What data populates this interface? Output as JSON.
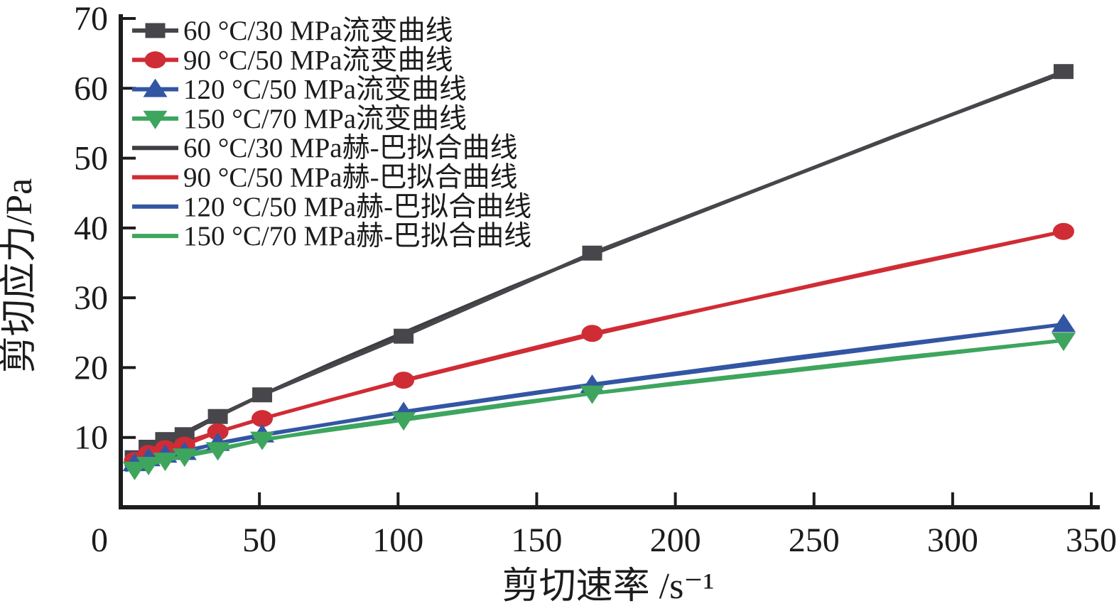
{
  "figure": {
    "background": "#ffffff",
    "axis_color": "#1c1c1c"
  },
  "chart_data": {
    "type": "line",
    "title": "",
    "xlabel": "剪切速率 /s⁻¹",
    "ylabel": "剪切应力/Pa",
    "xlim": [
      0,
      350
    ],
    "ylim": [
      0,
      70
    ],
    "x_ticks": [
      0,
      50,
      100,
      150,
      200,
      250,
      300,
      350
    ],
    "y_ticks": [
      10,
      20,
      30,
      40,
      50,
      60,
      70
    ],
    "grid": false,
    "legend_position": "top-left",
    "legend_frame": false,
    "series": [
      {
        "name": "60 °C/30 MPa流变曲线",
        "role": "data",
        "marker": "square",
        "color": "#46464b",
        "x": [
          5,
          10,
          16,
          23,
          35,
          51,
          102,
          170,
          340
        ],
        "y": [
          7.1,
          8.6,
          9.7,
          10.4,
          13.0,
          16.1,
          24.5,
          36.4,
          62.4
        ]
      },
      {
        "name": "90 °C/50 MPa流变曲线",
        "role": "data",
        "marker": "circle",
        "color": "#d02c35",
        "x": [
          5,
          10,
          16,
          23,
          35,
          51,
          102,
          170,
          340
        ],
        "y": [
          6.7,
          7.7,
          8.4,
          8.9,
          10.8,
          12.7,
          18.2,
          24.9,
          39.5
        ]
      },
      {
        "name": "120 °C/50 MPa流变曲线",
        "role": "data",
        "marker": "triangle-up",
        "color": "#3356a3",
        "x": [
          5,
          10,
          16,
          23,
          35,
          51,
          102,
          170,
          340
        ],
        "y": [
          6.3,
          7.0,
          7.5,
          7.9,
          9.2,
          10.4,
          13.6,
          17.5,
          26.2
        ]
      },
      {
        "name": "150 °C/70 MPa流变曲线",
        "role": "data",
        "marker": "triangle-down",
        "color": "#3ea55e",
        "x": [
          5,
          10,
          16,
          23,
          35,
          51,
          102,
          170,
          340
        ],
        "y": [
          5.4,
          6.1,
          6.7,
          7.3,
          8.2,
          9.7,
          12.5,
          16.3,
          23.9
        ]
      },
      {
        "name": "60 °C/30 MPa赫-巴拟合曲线",
        "role": "fit",
        "marker": null,
        "color": "#3e3e43",
        "x": [
          2,
          5,
          10,
          16,
          23,
          35,
          51,
          75,
          102,
          140,
          170,
          200,
          238,
          280,
          340
        ],
        "y": [
          6.1,
          6.9,
          8.0,
          9.3,
          10.7,
          13.1,
          16.1,
          20.4,
          25.0,
          31.4,
          36.2,
          40.9,
          46.8,
          53.3,
          62.2
        ]
      },
      {
        "name": "90 °C/50 MPa赫-巴拟合曲线",
        "role": "fit",
        "marker": null,
        "color": "#d02c35",
        "x": [
          2,
          5,
          10,
          16,
          23,
          35,
          51,
          75,
          102,
          140,
          170,
          200,
          238,
          280,
          340
        ],
        "y": [
          6.3,
          6.8,
          7.6,
          8.4,
          9.3,
          10.8,
          12.7,
          15.3,
          18.1,
          21.8,
          24.7,
          27.4,
          30.8,
          34.5,
          39.5
        ]
      },
      {
        "name": "120 °C/50 MPa赫-巴拟合曲线",
        "role": "fit",
        "marker": null,
        "color": "#3356a3",
        "x": [
          2,
          5,
          10,
          16,
          23,
          35,
          51,
          75,
          102,
          140,
          170,
          200,
          238,
          280,
          340
        ],
        "y": [
          6.0,
          6.4,
          6.9,
          7.5,
          8.1,
          9.1,
          10.3,
          11.9,
          13.7,
          15.9,
          17.6,
          19.2,
          21.2,
          23.3,
          26.2
        ]
      },
      {
        "name": "150 °C/70 MPa赫-巴拟合曲线",
        "role": "fit",
        "marker": null,
        "color": "#3ea55e",
        "x": [
          2,
          5,
          10,
          16,
          23,
          35,
          51,
          75,
          102,
          140,
          170,
          200,
          238,
          280,
          340
        ],
        "y": [
          5.3,
          5.7,
          6.3,
          6.9,
          7.5,
          8.4,
          9.6,
          11.2,
          12.7,
          14.8,
          16.3,
          17.8,
          19.5,
          21.4,
          23.9
        ]
      }
    ]
  }
}
